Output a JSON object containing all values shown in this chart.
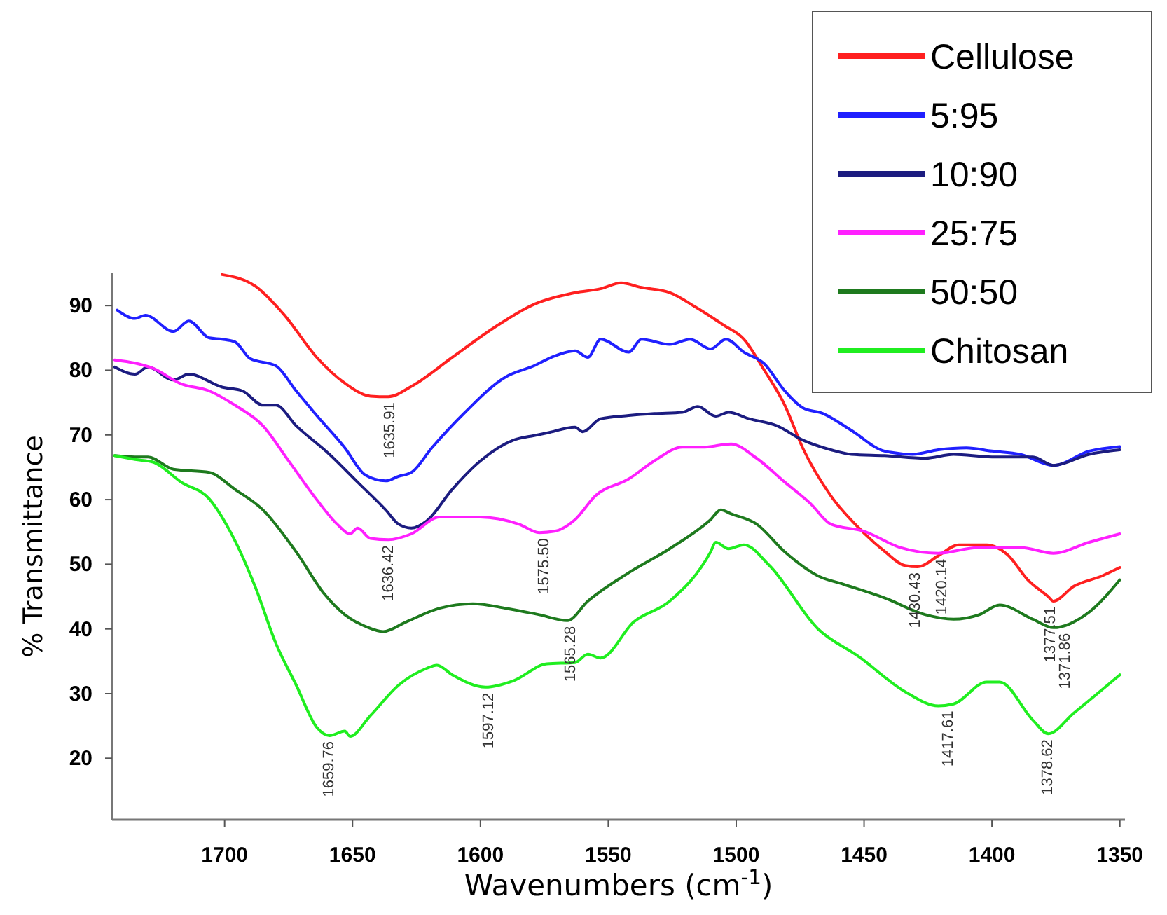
{
  "chart_data": {
    "type": "line",
    "xlabel": "Wavenumbers (cm$^{-1}$)",
    "ylabel": "% Transmittance",
    "xlim": [
      1744,
      1348
    ],
    "xticks": [
      1700,
      1650,
      1600,
      1550,
      1500,
      1450,
      1400,
      1350
    ],
    "ylim": [
      10.5,
      95
    ],
    "yticks": [
      20,
      30,
      40,
      50,
      60,
      70,
      80,
      90
    ],
    "grid": false,
    "legend": "top right",
    "line_style": "solid",
    "series": [
      {
        "name": "Cellulose",
        "color": "#ff2020",
        "x": [
          1701,
          1688,
          1677,
          1664,
          1653,
          1643,
          1636,
          1627,
          1611,
          1595,
          1579,
          1563,
          1553,
          1545,
          1537,
          1526,
          1516,
          1505,
          1497,
          1489,
          1481,
          1474,
          1463,
          1452,
          1442,
          1434,
          1429,
          1421,
          1413,
          1402,
          1394,
          1386,
          1378,
          1376,
          1368,
          1357,
          1350
        ],
        "values": [
          94.8,
          93,
          88.7,
          82,
          78,
          76,
          75.9,
          77.5,
          82,
          86.5,
          90.2,
          92,
          92.6,
          93.5,
          92.8,
          92,
          89.8,
          87,
          84.8,
          80,
          74.6,
          68,
          60.6,
          55.6,
          52,
          49.8,
          49.6,
          51.3,
          53,
          53,
          51.5,
          47.6,
          45,
          44.3,
          46.6,
          48.2,
          49.5
        ]
      },
      {
        "name": "5:95",
        "color": "#2020ff",
        "x": [
          1742,
          1735,
          1731,
          1720,
          1714,
          1706,
          1701,
          1696,
          1690,
          1680,
          1672,
          1664,
          1653,
          1645,
          1637,
          1632,
          1627,
          1619,
          1606,
          1590,
          1579,
          1571,
          1563,
          1558,
          1553,
          1542,
          1537,
          1526,
          1518,
          1510,
          1504,
          1497,
          1489,
          1481,
          1474,
          1466,
          1455,
          1442,
          1431,
          1421,
          1410,
          1400,
          1389,
          1376,
          1362,
          1350
        ],
        "values": [
          89.3,
          88,
          88.5,
          86,
          87.6,
          85,
          84.8,
          84.4,
          81.8,
          80.7,
          76.8,
          73,
          68,
          63.8,
          62.9,
          63.6,
          64.2,
          68,
          73.5,
          79,
          80.7,
          82.2,
          83,
          82,
          84.8,
          82.8,
          84.8,
          84,
          84.8,
          83.3,
          84.8,
          82.8,
          81,
          76.8,
          74.2,
          73.3,
          70.7,
          67.5,
          67,
          67.7,
          68,
          67.5,
          67,
          65.3,
          67.5,
          68.2
        ]
      },
      {
        "name": "10:90",
        "color": "#1c1c80",
        "x": [
          1743,
          1735,
          1730,
          1720,
          1714,
          1701,
          1693,
          1685,
          1680,
          1672,
          1659,
          1648,
          1637,
          1632,
          1627,
          1621,
          1611,
          1600,
          1587,
          1579,
          1574,
          1563,
          1560,
          1553,
          1542,
          1532,
          1521,
          1515,
          1508,
          1503,
          1495,
          1484,
          1474,
          1463,
          1455,
          1442,
          1426,
          1415,
          1400,
          1384,
          1376,
          1362,
          1350
        ],
        "values": [
          80.5,
          79.4,
          80.5,
          78.5,
          79.4,
          77.4,
          76.8,
          74.6,
          74.6,
          71.4,
          67,
          62.7,
          58.4,
          56.2,
          55.6,
          56.7,
          61.6,
          66,
          69.2,
          69.9,
          70.3,
          71.2,
          70.5,
          72.5,
          73,
          73.3,
          73.5,
          74.4,
          72.9,
          73.5,
          72.5,
          71.4,
          69.2,
          67.7,
          67,
          66.8,
          66.4,
          67,
          66.6,
          66.6,
          65.3,
          67,
          67.7
        ]
      },
      {
        "name": "25:75",
        "color": "#ff20ff",
        "x": [
          1743,
          1735,
          1728,
          1717,
          1706,
          1696,
          1685,
          1675,
          1664,
          1656,
          1651,
          1648,
          1643,
          1636,
          1627,
          1616,
          1600,
          1585,
          1577,
          1571,
          1563,
          1555,
          1542,
          1532,
          1521,
          1513,
          1502,
          1492,
          1481,
          1471,
          1463,
          1450,
          1436,
          1421,
          1405,
          1389,
          1376,
          1362,
          1350
        ],
        "values": [
          81.6,
          81.1,
          80.3,
          77.9,
          76.8,
          74.6,
          71.4,
          66,
          60,
          56.2,
          54.7,
          55.6,
          54,
          53.8,
          54.7,
          57.3,
          57.3,
          56.2,
          54.9,
          55.1,
          56.9,
          60.6,
          63.2,
          66,
          68.1,
          68.1,
          68.6,
          66.4,
          62.7,
          59.4,
          56.2,
          55.1,
          52.6,
          51.7,
          52.6,
          52.6,
          51.7,
          53.4,
          54.7
        ]
      },
      {
        "name": "50:50",
        "color": "#1e7a1e",
        "x": [
          1743,
          1735,
          1730,
          1720,
          1706,
          1696,
          1685,
          1672,
          1661,
          1653,
          1645,
          1638,
          1629,
          1616,
          1603,
          1590,
          1577,
          1566,
          1558,
          1542,
          1526,
          1510,
          1506,
          1502,
          1492,
          1481,
          1468,
          1458,
          1442,
          1426,
          1415,
          1405,
          1397,
          1384,
          1376,
          1362,
          1350
        ],
        "values": [
          66.8,
          66.6,
          66.6,
          64.7,
          64.2,
          61.6,
          58.4,
          51.9,
          45.4,
          42.2,
          40.4,
          39.6,
          41.1,
          43.2,
          43.9,
          43.2,
          42.2,
          41.3,
          44.3,
          48.7,
          52.4,
          56.9,
          58.4,
          57.8,
          56.2,
          51.9,
          48.2,
          46.9,
          44.8,
          42.2,
          41.5,
          42.2,
          43.7,
          41.5,
          40.2,
          42.6,
          47.6
        ]
      },
      {
        "name": "Chitosan",
        "color": "#20ee20",
        "x": [
          1743,
          1735,
          1728,
          1717,
          1706,
          1698,
          1688,
          1680,
          1672,
          1664,
          1659,
          1653,
          1651,
          1643,
          1632,
          1621,
          1617,
          1611,
          1598,
          1587,
          1574,
          1563,
          1558,
          1553,
          1540,
          1526,
          1510,
          1508,
          1503,
          1497,
          1487,
          1468,
          1452,
          1434,
          1421,
          1415,
          1402,
          1397,
          1384,
          1378,
          1368,
          1350
        ],
        "values": [
          66.8,
          66.2,
          65.8,
          62.7,
          60.1,
          55.2,
          46.5,
          37.8,
          31.3,
          24.8,
          23.5,
          24.2,
          23.4,
          26.6,
          31.3,
          33.9,
          34.4,
          32.9,
          31,
          32,
          34.6,
          34.8,
          36.1,
          35.5,
          41.1,
          44.3,
          51.9,
          53.4,
          52.4,
          53,
          49.8,
          40,
          35.7,
          30.3,
          28.1,
          28.4,
          31.8,
          31.8,
          25.9,
          23.8,
          27,
          32.9
        ]
      }
    ],
    "annotations": [
      {
        "text": "1635.91",
        "x": 1635.91,
        "y": 75.9
      },
      {
        "text": "1636.42",
        "x": 1636.42,
        "y": 53.8
      },
      {
        "text": "1575.50",
        "x": 1575.5,
        "y": 54.9
      },
      {
        "text": "1565.28",
        "x": 1565.28,
        "y": 41.3
      },
      {
        "text": "1659.76",
        "x": 1659.76,
        "y": 23.5
      },
      {
        "text": "1597.12",
        "x": 1597.12,
        "y": 31
      },
      {
        "text": "1430.43",
        "x": 1430.43,
        "y": 49.6
      },
      {
        "text": "1420.14",
        "x": 1420.14,
        "y": 51.7
      },
      {
        "text": "1377.51",
        "x": 1377.51,
        "y": 44.3
      },
      {
        "text": "1371.86",
        "x": 1371.86,
        "y": 40.2
      },
      {
        "text": "1417.61",
        "x": 1417.61,
        "y": 28.2
      },
      {
        "text": "1378.62",
        "x": 1378.62,
        "y": 23.8
      }
    ]
  }
}
